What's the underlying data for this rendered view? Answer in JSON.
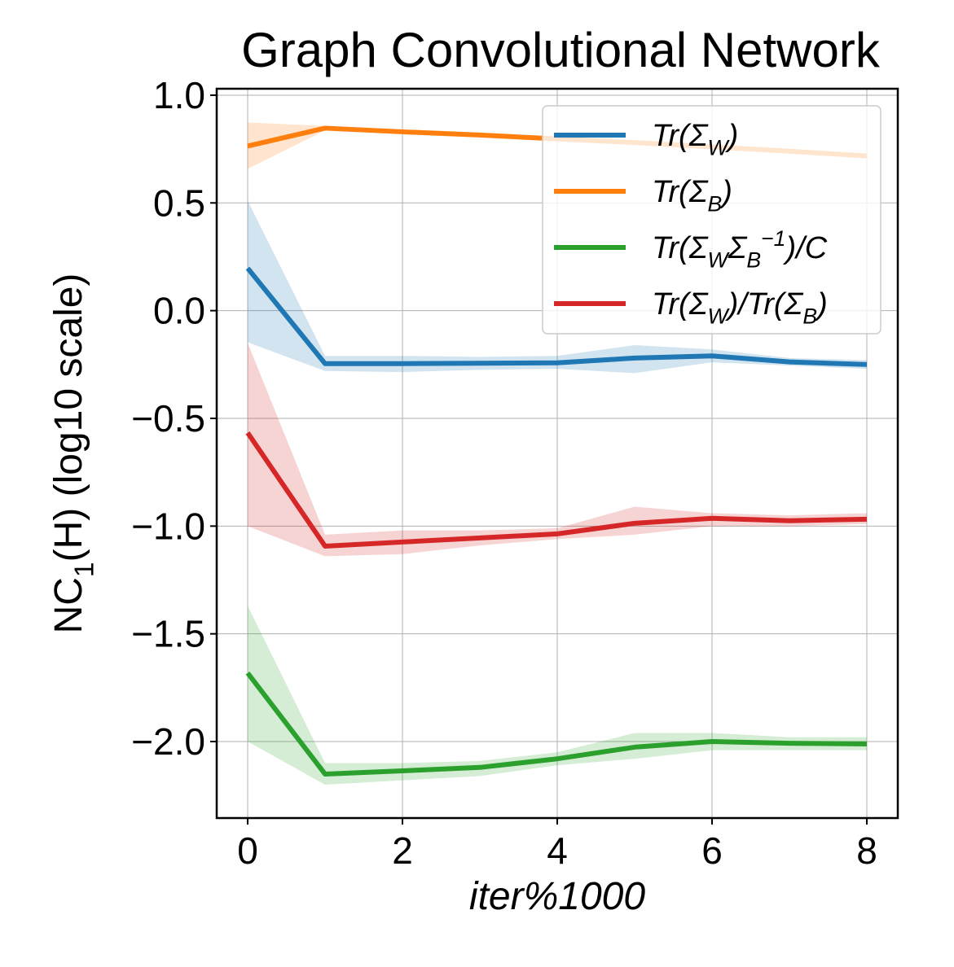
{
  "chart_data": {
    "type": "line",
    "title": "Graph Convolutional Network",
    "xlabel": "iter%1000",
    "ylabel": "NC_1(H) (log10 scale)",
    "xlim": [
      -0.4,
      8.4
    ],
    "ylim": [
      -2.355,
      1.03
    ],
    "xticks": [
      0,
      2,
      4,
      6,
      8
    ],
    "xtick_labels": [
      "0",
      "2",
      "4",
      "6",
      "8"
    ],
    "yticks": [
      1.0,
      0.5,
      0.0,
      -0.5,
      -1.0,
      -1.5,
      -2.0
    ],
    "ytick_labels": [
      "1.0",
      "0.5",
      "0.0",
      "−0.5",
      "−1.0",
      "−1.5",
      "−2.0"
    ],
    "grid": true,
    "legend_position": "top-right",
    "x": [
      0,
      1,
      2,
      3,
      4,
      5,
      6,
      7,
      8
    ],
    "series": [
      {
        "name": "Tr(Σ_W)",
        "color": "#1f77b4",
        "values": [
          0.197,
          -0.246,
          -0.246,
          -0.244,
          -0.242,
          -0.22,
          -0.21,
          -0.238,
          -0.25
        ],
        "upper": [
          0.51,
          -0.21,
          -0.21,
          -0.215,
          -0.21,
          -0.16,
          -0.18,
          -0.22,
          -0.23
        ],
        "lower": [
          -0.147,
          -0.28,
          -0.285,
          -0.275,
          -0.27,
          -0.29,
          -0.24,
          -0.255,
          -0.27
        ]
      },
      {
        "name": "Tr(Σ_B)",
        "color": "#ff7f0e",
        "values": [
          0.764,
          0.847,
          0.83,
          0.815,
          0.797,
          0.78,
          0.76,
          0.74,
          0.718
        ],
        "upper": [
          0.873,
          0.857,
          0.84,
          0.825,
          0.807,
          0.79,
          0.77,
          0.75,
          0.728
        ],
        "lower": [
          0.658,
          0.837,
          0.82,
          0.805,
          0.787,
          0.77,
          0.75,
          0.73,
          0.708
        ]
      },
      {
        "name": "Tr(Σ_WΣ_B^{−1})/C",
        "color": "#2ca02c",
        "values": [
          -1.682,
          -2.151,
          -2.136,
          -2.12,
          -2.08,
          -2.026,
          -2.0,
          -2.008,
          -2.011
        ],
        "upper": [
          -1.37,
          -2.1,
          -2.1,
          -2.09,
          -2.05,
          -1.96,
          -1.96,
          -1.98,
          -1.98
        ],
        "lower": [
          -2.0,
          -2.2,
          -2.18,
          -2.16,
          -2.11,
          -2.08,
          -2.04,
          -2.04,
          -2.04
        ]
      },
      {
        "name": "Tr(Σ_W)/Tr(Σ_B)",
        "color": "#d62728",
        "values": [
          -0.567,
          -1.093,
          -1.074,
          -1.055,
          -1.036,
          -0.987,
          -0.964,
          -0.975,
          -0.968
        ],
        "upper": [
          -0.15,
          -1.04,
          -1.02,
          -1.02,
          -1.01,
          -0.91,
          -0.94,
          -0.95,
          -0.94
        ],
        "lower": [
          -1.0,
          -1.14,
          -1.13,
          -1.09,
          -1.06,
          -1.04,
          -1.0,
          -1.0,
          -0.99
        ]
      }
    ]
  }
}
